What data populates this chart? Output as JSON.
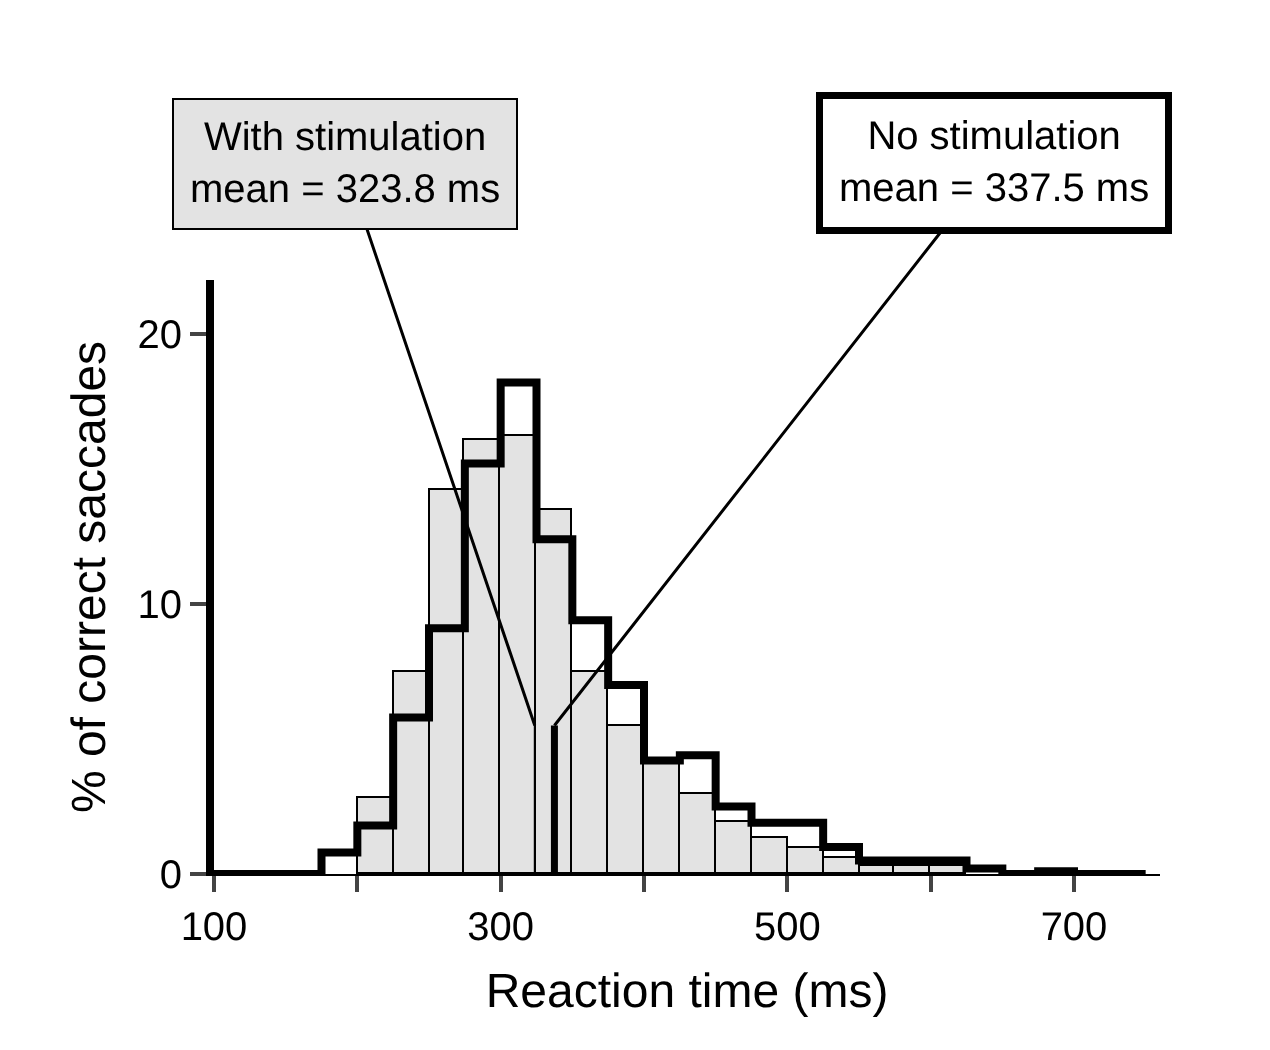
{
  "chart_data": {
    "type": "histogram",
    "xlabel": "Reaction time (ms)",
    "ylabel": "% of correct saccades",
    "bins": [
      200,
      225,
      250,
      275,
      300,
      325,
      350,
      375,
      400,
      425,
      450,
      475,
      500,
      525,
      550,
      575,
      600,
      625
    ],
    "series": [
      {
        "color": "#e3e3e3",
        "values": [
          2.8,
          7.5,
          14.2,
          16.1,
          16.2,
          13.5,
          7.5,
          5.5,
          4.2,
          3.0,
          1.9,
          1.3,
          1.0,
          0.6,
          0.3,
          0.3,
          0.3
        ]
      },
      {
        "type": "step",
        "color": "#000000",
        "x": [
          100,
          125,
          150,
          175,
          200,
          225,
          250,
          275,
          300,
          325,
          350,
          375,
          400,
          425,
          450,
          475,
          500,
          525,
          550,
          575,
          600,
          625,
          650,
          675,
          700,
          725,
          750
        ],
        "values": [
          0,
          0,
          0,
          0.8,
          1.8,
          5.8,
          9.1,
          15.2,
          18.2,
          12.4,
          9.4,
          7.0,
          4.2,
          4.4,
          2.5,
          1.9,
          1.9,
          1.0,
          0.5,
          0.5,
          0.5,
          0.2,
          0,
          0.1,
          0,
          0,
          0
        ]
      }
    ],
    "xlim": [
      100,
      760
    ],
    "xticks": [
      100,
      {
        "value": 200,
        "label": null
      },
      300,
      {
        "value": 400,
        "label": null
      },
      500,
      {
        "value": 600,
        "label": null
      },
      700
    ],
    "ylim": [
      0,
      22
    ],
    "yticks": [
      0,
      10,
      20
    ],
    "ref_lines": [
      {
        "axis": "x",
        "value": 323.8,
        "label": "With stimulation\nmean = 323.8 ms",
        "color": "#000000"
      },
      {
        "axis": "x",
        "value": 337.5,
        "label": "No stimulation\nmean = 337.5 ms",
        "color": "#000000"
      }
    ],
    "grid": false
  }
}
